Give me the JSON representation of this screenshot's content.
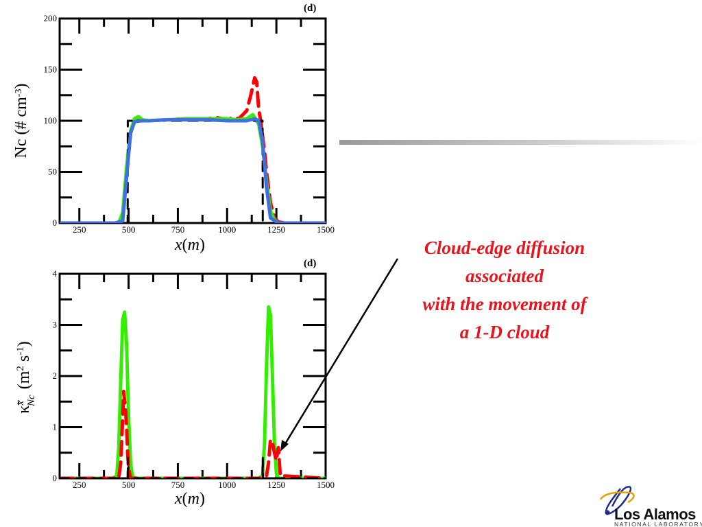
{
  "chart_data": [
    {
      "type": "line",
      "panel_tag": "(d)",
      "ylabel": "Nc (# cm-3)",
      "ylabel_main": "Nc (# cm",
      "ylabel_sup": "-3",
      "ylabel_close": ")",
      "xlabel_var": "x",
      "xlabel_unit": "m",
      "xlim": [
        150,
        1500
      ],
      "ylim": [
        0,
        200
      ],
      "xticks": [
        250,
        500,
        750,
        1000,
        1250,
        1500
      ],
      "yticks": [
        0,
        50,
        100,
        150,
        200
      ],
      "grid": false,
      "series": [
        {
          "color": "#ff0000",
          "style": "dashed",
          "x": [
            150,
            400,
            450,
            470,
            490,
            510,
            530,
            560,
            600,
            700,
            800,
            900,
            950,
            1000,
            1030,
            1060,
            1080,
            1100,
            1120,
            1140,
            1150,
            1160,
            1170,
            1180,
            1190,
            1200,
            1220,
            1240,
            1260,
            1300,
            1500
          ],
          "y": [
            0,
            0,
            0,
            5,
            50,
            88,
            100,
            101,
            100,
            101,
            102,
            102,
            103,
            101,
            103,
            102,
            106,
            110,
            125,
            142,
            138,
            112,
            100,
            85,
            70,
            50,
            20,
            5,
            1,
            0,
            0
          ]
        },
        {
          "color": "#33ee00",
          "style": "solid",
          "x": [
            150,
            400,
            450,
            470,
            490,
            510,
            530,
            550,
            570,
            600,
            700,
            800,
            900,
            1000,
            1050,
            1100,
            1130,
            1140,
            1160,
            1180,
            1200,
            1220,
            1240,
            1260,
            1300,
            1500
          ],
          "y": [
            0,
            0,
            0,
            10,
            55,
            90,
            102,
            104,
            101,
            100,
            101,
            102,
            102,
            102,
            101,
            102,
            106,
            103,
            97,
            75,
            40,
            12,
            3,
            0,
            0,
            0
          ]
        },
        {
          "color": "#000000",
          "style": "dashed",
          "x": [
            150,
            495,
            496,
            530,
            1180,
            1181,
            1500
          ],
          "y": [
            0,
            0,
            100,
            100,
            100,
            0,
            0
          ]
        },
        {
          "color": "#3f6fe0",
          "style": "solid",
          "x": [
            150,
            430,
            470,
            490,
            510,
            530,
            560,
            600,
            700,
            800,
            900,
            1000,
            1100,
            1140,
            1160,
            1180,
            1200,
            1220,
            1260,
            1500
          ],
          "y": [
            0,
            0,
            2,
            45,
            88,
            99,
            100,
            100,
            101,
            101,
            101,
            100,
            100,
            102,
            100,
            80,
            35,
            5,
            0,
            0
          ]
        }
      ]
    },
    {
      "type": "line",
      "panel_tag": "(d)",
      "ylabel": "κ̃xNc (m2 s-1)",
      "xlabel_var": "x",
      "xlabel_unit": "m",
      "xlim": [
        150,
        1500
      ],
      "ylim": [
        0,
        4
      ],
      "xticks": [
        250,
        500,
        750,
        1000,
        1250,
        1500
      ],
      "yticks": [
        0,
        1,
        2,
        3,
        4
      ],
      "grid": false,
      "series": [
        {
          "color": "#33ee00",
          "style": "solid",
          "x": [
            150,
            420,
            440,
            450,
            460,
            470,
            480,
            490,
            500,
            510,
            520,
            540,
            1160,
            1180,
            1190,
            1200,
            1210,
            1220,
            1230,
            1240,
            1250,
            1260,
            1280,
            1500
          ],
          "y": [
            0,
            0,
            0.05,
            0.6,
            1.9,
            3.1,
            3.25,
            2.6,
            1.2,
            0.3,
            0.03,
            0,
            0,
            0.05,
            0.7,
            2.2,
            3.35,
            3.2,
            2.0,
            0.7,
            0.1,
            0,
            0,
            0
          ]
        },
        {
          "color": "#ff0000",
          "style": "dashed",
          "x": [
            150,
            450,
            460,
            470,
            475,
            480,
            485,
            490,
            495,
            500,
            510,
            1180,
            1200,
            1210,
            1220,
            1230,
            1240,
            1250,
            1260,
            1270,
            1500
          ],
          "y": [
            0,
            0,
            0.3,
            1.2,
            1.7,
            1.5,
            1.3,
            1.0,
            0.5,
            0.2,
            0,
            0,
            0.05,
            0.3,
            0.75,
            0.7,
            0.5,
            0.35,
            0.6,
            0.05,
            0
          ]
        },
        {
          "color": "#000000",
          "style": "dashed",
          "x": [
            150,
            495,
            496,
            497,
            1180,
            1181,
            1182,
            1500
          ],
          "y": [
            0,
            0,
            0.4,
            0,
            0,
            0.4,
            0,
            0
          ]
        }
      ]
    }
  ],
  "callout": {
    "lines": [
      "Cloud-edge diffusion",
      "associated",
      "with the movement of",
      "a 1-D cloud"
    ],
    "color": "#e8141c"
  },
  "logo": {
    "name": "Los Alamos",
    "sub": "NATIONAL LABORATORY"
  },
  "divider_bar": {
    "color": "#999999"
  }
}
